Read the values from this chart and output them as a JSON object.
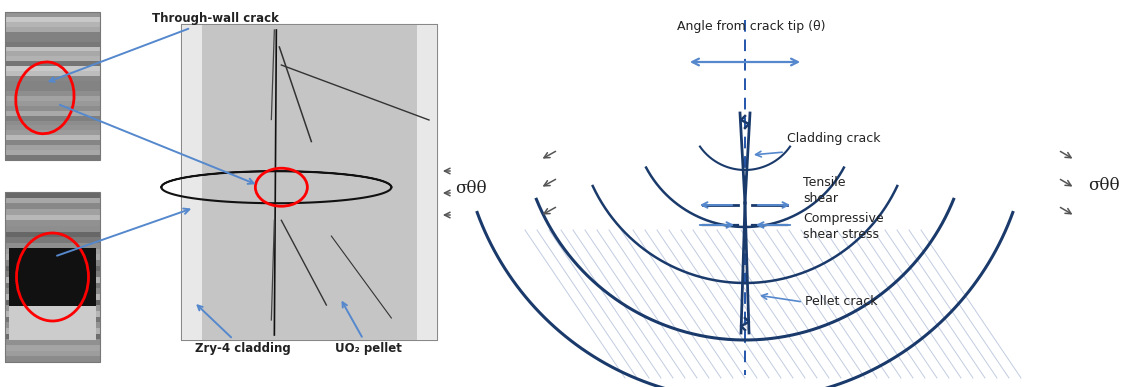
{
  "bg_color": "#ffffff",
  "dark_blue": "#1a3a6b",
  "medium_blue": "#2255aa",
  "arrow_blue": "#5588cc",
  "text_color": "#222222",
  "gray_arrow": "#555555",
  "label_through_wall": "Through-wall crack",
  "label_zry4": "Zry-4 cladding",
  "label_uo2": "UO₂ pellet",
  "label_angle": "Angle from crack tip (θ)",
  "label_cladding_crack": "Cladding crack",
  "label_tensile": "Tensile\nshear",
  "label_compressive": "Compressive\nshear stress",
  "label_pellet": "Pellet crack",
  "label_sigma": "σθθ"
}
